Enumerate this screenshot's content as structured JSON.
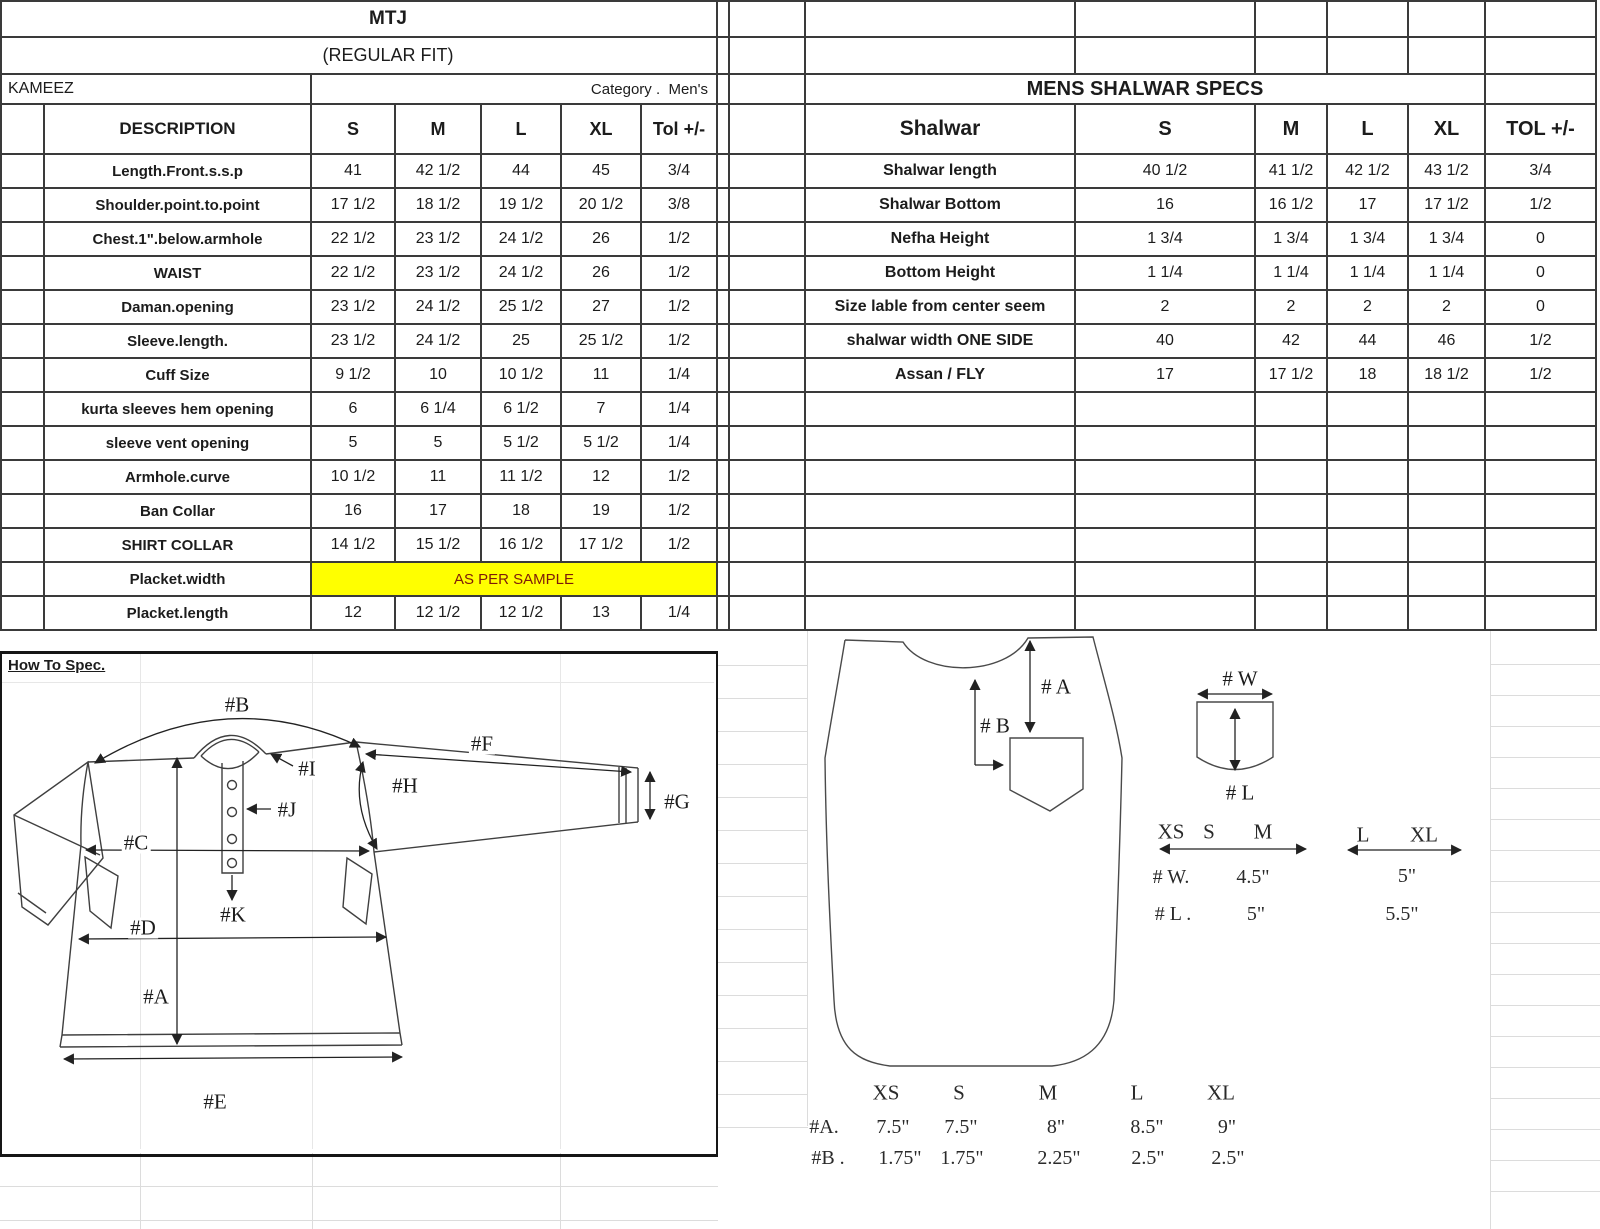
{
  "colors": {
    "highlight": "#FFFF00",
    "highlight_text": "#7E1B08",
    "table_border": "#3a3a3a",
    "faint_grid": "#dcdcdc"
  },
  "header": {
    "brand": "MTJ",
    "fit": "(REGULAR FIT)",
    "garment": "KAMEEZ",
    "category": "Category .  Men's"
  },
  "kameez_table": {
    "columns": [
      "DESCRIPTION",
      "S",
      "M",
      "L",
      "XL",
      "Tol +/-"
    ],
    "rows": [
      {
        "label": "Length.Front.s.s.p",
        "values": [
          "41",
          "42 1/2",
          "44",
          "45",
          "3/4"
        ]
      },
      {
        "label": "Shoulder.point.to.point",
        "values": [
          "17 1/2",
          "18 1/2",
          "19 1/2",
          "20 1/2",
          "3/8"
        ]
      },
      {
        "label": "Chest.1\".below.armhole",
        "values": [
          "22 1/2",
          "23 1/2",
          "24 1/2",
          "26",
          "1/2"
        ]
      },
      {
        "label": "WAIST",
        "values": [
          "22 1/2",
          "23 1/2",
          "24 1/2",
          "26",
          "1/2"
        ]
      },
      {
        "label": "Daman.opening",
        "values": [
          "23 1/2",
          "24 1/2",
          "25 1/2",
          "27",
          "1/2"
        ]
      },
      {
        "label": "Sleeve.length.",
        "values": [
          "23 1/2",
          "24 1/2",
          "25",
          "25 1/2",
          "1/2"
        ]
      },
      {
        "label": "Cuff Size",
        "values": [
          "9 1/2",
          "10",
          "10 1/2",
          "11",
          "1/4"
        ]
      },
      {
        "label": "kurta sleeves hem opening",
        "values": [
          "6",
          "6 1/4",
          "6 1/2",
          "7",
          "1/4"
        ]
      },
      {
        "label": "sleeve vent opening",
        "values": [
          "5",
          "5",
          "5 1/2",
          "5 1/2",
          "1/4"
        ]
      },
      {
        "label": "Armhole.curve",
        "values": [
          "10 1/2",
          "11",
          "11 1/2",
          "12",
          "1/2"
        ]
      },
      {
        "label": "Ban Collar",
        "values": [
          "16",
          "17",
          "18",
          "19",
          "1/2"
        ]
      },
      {
        "label": "SHIRT COLLAR",
        "values": [
          "14 1/2",
          "15 1/2",
          "16 1/2",
          "17 1/2",
          "1/2"
        ]
      },
      {
        "label": "Placket.width",
        "merged": "AS PER SAMPLE"
      },
      {
        "label": "Placket.length",
        "values": [
          "12",
          "12 1/2",
          "12 1/2",
          "13",
          "1/4"
        ]
      }
    ]
  },
  "shalwar_table": {
    "title": "MENS SHALWAR SPECS",
    "columns": [
      "Shalwar",
      "S",
      "M",
      "L",
      "XL",
      "TOL +/-"
    ],
    "rows": [
      {
        "label": "Shalwar length",
        "values": [
          "40 1/2",
          "41 1/2",
          "42 1/2",
          "43 1/2",
          "3/4"
        ]
      },
      {
        "label": "Shalwar Bottom",
        "values": [
          "16",
          "16 1/2",
          "17",
          "17 1/2",
          "1/2"
        ]
      },
      {
        "label": "Nefha Height",
        "values": [
          "1 3/4",
          "1 3/4",
          "1 3/4",
          "1 3/4",
          "0"
        ]
      },
      {
        "label": "Bottom Height",
        "values": [
          "1 1/4",
          "1 1/4",
          "1 1/4",
          "1 1/4",
          "0"
        ]
      },
      {
        "label": "Size lable from center seem",
        "values": [
          "2",
          "2",
          "2",
          "2",
          "0"
        ]
      },
      {
        "label": "shalwar width ONE SIDE",
        "values": [
          "40",
          "42",
          "44",
          "46",
          "1/2"
        ]
      },
      {
        "label": "Assan / FLY",
        "values": [
          "17",
          "17 1/2",
          "18",
          "18 1/2",
          "1/2"
        ]
      }
    ],
    "empty_rows": 7
  },
  "how_to_spec": {
    "title": "How To Spec."
  },
  "kameez_labels": {
    "a": "#A",
    "b": "#B",
    "c": "#C",
    "d": "#D",
    "e": "#E",
    "f": "#F",
    "g": "#G",
    "h": "#H",
    "i": "#I",
    "j": "#J",
    "k": "#K"
  },
  "pocket_diagram": {
    "a": "# A",
    "b": "# B",
    "w": "# W",
    "l": "# L",
    "group1": [
      "XS",
      "S",
      "M"
    ],
    "group2": [
      "L",
      "XL"
    ],
    "w_row": {
      "label": "# W.",
      "small": "4.5\"",
      "large": "5\""
    },
    "l_row": {
      "label": "# L .",
      "small": "5\"",
      "large": "5.5\""
    }
  },
  "placement": {
    "sizes": [
      "XS",
      "S",
      "M",
      "L",
      "XL"
    ],
    "a": {
      "label": "#A.",
      "values": [
        "7.5\"",
        "7.5\"",
        "8\"",
        "8.5\"",
        "9\""
      ]
    },
    "b": {
      "label": "#B .",
      "values": [
        "1.75\"",
        "1.75\"",
        "2.25\"",
        "2.5\"",
        "2.5\""
      ]
    }
  }
}
